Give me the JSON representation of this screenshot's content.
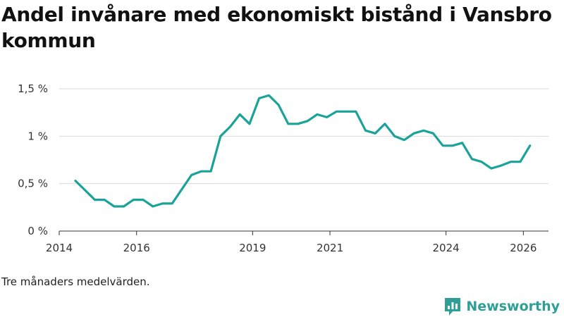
{
  "title": "Andel invånare med ekonomiskt bistånd i Vansbro kommun",
  "note": "Tre månaders medelvärden.",
  "brand": {
    "name": "Newsworthy",
    "icon": "newsworthy-logo-icon"
  },
  "colors": {
    "line": "#1aa398",
    "grid": "#d9d9d9",
    "axis": "#333333",
    "brand": "#2e9f96"
  },
  "chart_data": {
    "type": "line",
    "title": "Andel invånare med ekonomiskt bistånd i Vansbro kommun",
    "xlabel": "",
    "ylabel": "",
    "xlim": [
      2014.0,
      2026.65
    ],
    "ylim": [
      0,
      1.5
    ],
    "y_ticks": [
      {
        "value": 0,
        "label": "0 %"
      },
      {
        "value": 0.5,
        "label": "0,5 %"
      },
      {
        "value": 1,
        "label": "1 %"
      },
      {
        "value": 1.5,
        "label": "1,5 %"
      }
    ],
    "x_ticks": [
      {
        "value": 2014,
        "label": "2014"
      },
      {
        "value": 2016,
        "label": "2016"
      },
      {
        "value": 2019,
        "label": "2019"
      },
      {
        "value": 2021,
        "label": "2021"
      },
      {
        "value": 2024,
        "label": "2024"
      },
      {
        "value": 2026,
        "label": "2026"
      }
    ],
    "grid": true,
    "series": [
      {
        "name": "Andel invånare med ekonomiskt bistånd",
        "x": [
          2014.42,
          2014.67,
          2014.92,
          2015.17,
          2015.42,
          2015.67,
          2015.92,
          2016.17,
          2016.42,
          2016.67,
          2016.92,
          2017.17,
          2017.42,
          2017.67,
          2017.92,
          2018.17,
          2018.42,
          2018.67,
          2018.92,
          2019.17,
          2019.42,
          2019.67,
          2019.92,
          2020.17,
          2020.42,
          2020.67,
          2020.92,
          2021.17,
          2021.42,
          2021.67,
          2021.92,
          2022.17,
          2022.42,
          2022.67,
          2022.92,
          2023.17,
          2023.42,
          2023.67,
          2023.92,
          2024.17,
          2024.42,
          2024.67,
          2024.92,
          2025.17,
          2025.42,
          2025.67,
          2025.92,
          2026.17
        ],
        "values": [
          0.53,
          0.43,
          0.33,
          0.33,
          0.26,
          0.26,
          0.33,
          0.33,
          0.26,
          0.29,
          0.29,
          0.44,
          0.59,
          0.63,
          0.63,
          1.0,
          1.1,
          1.23,
          1.13,
          1.4,
          1.43,
          1.33,
          1.13,
          1.13,
          1.16,
          1.23,
          1.2,
          1.26,
          1.26,
          1.26,
          1.06,
          1.03,
          1.13,
          1.0,
          0.96,
          1.03,
          1.06,
          1.03,
          0.9,
          0.9,
          0.93,
          0.76,
          0.73,
          0.66,
          0.69,
          0.73,
          0.73,
          0.9
        ]
      }
    ]
  }
}
